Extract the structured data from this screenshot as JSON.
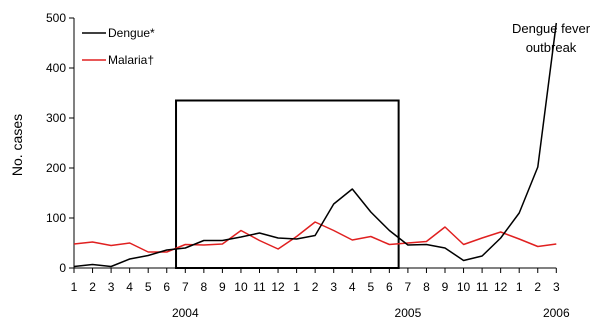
{
  "chart_data": {
    "type": "line",
    "title": "",
    "xlabel": "",
    "ylabel": "No. cases",
    "ylim": [
      0,
      500
    ],
    "yticks": [
      0,
      100,
      200,
      300,
      400,
      500
    ],
    "grid": false,
    "legend_placement": "top-left",
    "x": [
      "1",
      "2",
      "3",
      "4",
      "5",
      "6",
      "7",
      "8",
      "9",
      "10",
      "11",
      "12",
      "1",
      "2",
      "3",
      "4",
      "5",
      "6",
      "7",
      "8",
      "9",
      "10",
      "11",
      "12",
      "1",
      "2",
      "3"
    ],
    "year_labels": [
      {
        "label": "2004",
        "month_index": 6
      },
      {
        "label": "2005",
        "month_index": 18
      },
      {
        "label": "2006",
        "month_index": 26
      }
    ],
    "highlight_range": {
      "from_index": 6,
      "to_index": 17,
      "y_max": 335
    },
    "series": [
      {
        "name": "Dengue*",
        "color": "#000000",
        "values": [
          3,
          7,
          3,
          18,
          25,
          36,
          40,
          55,
          55,
          62,
          70,
          60,
          58,
          65,
          128,
          158,
          112,
          75,
          46,
          47,
          40,
          15,
          24,
          60,
          110,
          202,
          490
        ]
      },
      {
        "name": "Malaria†",
        "color": "#e02020",
        "values": [
          48,
          52,
          45,
          50,
          32,
          32,
          47,
          46,
          48,
          75,
          55,
          38,
          63,
          92,
          75,
          56,
          63,
          47,
          50,
          53,
          82,
          47,
          60,
          72,
          58,
          43,
          48
        ]
      }
    ],
    "annotations": [
      {
        "lines": [
          "Dengue fever",
          "outbreak"
        ],
        "x_index": 26,
        "y": 480
      }
    ]
  }
}
